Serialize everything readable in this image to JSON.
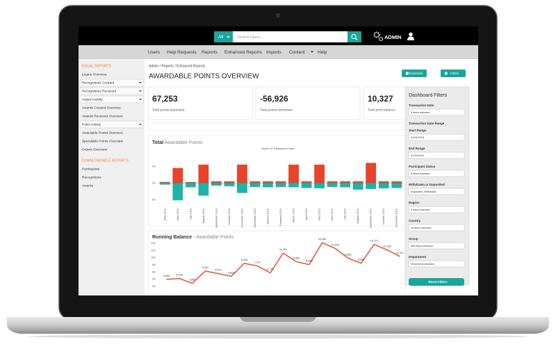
{
  "topbar": {
    "search_scope": "All",
    "search_placeholder": "Search Users...",
    "user": "ADMIN"
  },
  "nav": [
    "Users",
    "Help Requests",
    "Reports",
    "Enhanced Reports",
    "Imports",
    "Content",
    "Help"
  ],
  "sidebar": [
    {
      "heading": "VISUAL REPORTS",
      "items": [
        {
          "label": "Logins Overview"
        },
        {
          "label": "Recognitions Created",
          "dropdown": true
        },
        {
          "label": "Recognitions Received",
          "dropdown": true
        },
        {
          "label": "Award Activity",
          "dropdown": true
        },
        {
          "label": "Awards Created Overview"
        },
        {
          "label": "Awards Received Overview"
        },
        {
          "label": "Point Activity",
          "dropdown": true
        },
        {
          "label": "Awardable Points Overview"
        },
        {
          "label": "Spendable Points Overview"
        },
        {
          "label": "Orders Overview"
        }
      ]
    },
    {
      "heading": "DOWNLOADABLE REPORTS",
      "items": [
        {
          "label": "Participants"
        },
        {
          "label": "Recognitions"
        },
        {
          "label": "Awards"
        }
      ]
    }
  ],
  "breadcrumb": "Admin  /  Reports  /  Enhanced Reports",
  "page_title": "AWARDABLE POINTS OVERVIEW",
  "buttons": [
    "Download",
    "Filters"
  ],
  "kpis": [
    {
      "value": "67,253",
      "label": "Total points deposited"
    },
    {
      "value": "-56,926",
      "label": "Total points withdrawn"
    },
    {
      "value": "10,327",
      "label": "Total point balance"
    }
  ],
  "filters": {
    "title": "Dashboard Filters",
    "fields": [
      {
        "label": "Transaction Date",
        "value": "9 items selected"
      },
      {
        "label": "Transaction Date Range"
      },
      {
        "label": "Start Range",
        "value": "01/15/2018"
      },
      {
        "label": "End Range",
        "value": "01/15/2020"
      },
      {
        "label": "Participant Status",
        "value": "5 items selected"
      },
      {
        "label": "Withdrawn or Deposited",
        "value": "Deposited, Withdrawn"
      },
      {
        "label": "Region",
        "value": "4 items selected"
      },
      {
        "label": "Country",
        "value": "34 items selected"
      },
      {
        "label": "Group",
        "value": "382 items selected"
      },
      {
        "label": "Department",
        "value": "2918 items selected"
      }
    ],
    "reset": "Reset Filters"
  },
  "charts": [
    {
      "type": "bar",
      "title": "Total",
      "subtitle": "Awardable Points",
      "x_label": "Month of Transaction Date",
      "categories": [
        "May 2018",
        "June 2018",
        "July 2018",
        "August 2018",
        "September 2018",
        "October 2018",
        "November 2018",
        "December 2018",
        "January 2019",
        "February 2019",
        "March 2019",
        "April 2019",
        "May 2019",
        "June 2019",
        "July 2019",
        "August 2019",
        "September 2019",
        "October 2019",
        "November 2019"
      ],
      "series": [
        {
          "color": "#e8432b",
          "values": [
            300,
            4500,
            300,
            5500,
            500,
            500,
            5500,
            500,
            500,
            500,
            5500,
            500,
            5500,
            500,
            500,
            500,
            6000,
            500,
            500
          ]
        },
        {
          "color": "#1fb3a8",
          "values": [
            -500,
            -5200,
            -1300,
            -3800,
            -800,
            -1000,
            -3000,
            -1200,
            -1300,
            -1200,
            -1300,
            -1500,
            -1600,
            -1200,
            -1300,
            -2000,
            -1800,
            -1600,
            -1500
          ]
        }
      ],
      "ylim": [
        -8000,
        9000
      ],
      "yticks": [
        {
          "value": 5000,
          "label": "5K"
        },
        {
          "value": 0,
          "label": "0K"
        },
        {
          "value": -5000,
          "label": "-5K"
        }
      ]
    },
    {
      "type": "line",
      "title": "Running Balance",
      "subtitle": "- Awardable Points",
      "color": "#e8432b",
      "values": [
        3960,
        4208,
        2860,
        6287,
        5574,
        4824,
        8426,
        7714,
        5778,
        11261,
        8885,
        8089,
        14183,
        12578,
        9856,
        8461,
        13721,
        12155,
        10327
      ],
      "value_labels": [
        "3,960",
        "4,208",
        "2,860",
        "6,287",
        "5,574",
        "4,824",
        "8,426",
        "7,714",
        "5,778",
        "11,261",
        "8,885",
        "8,089",
        "14,183",
        "12,578",
        "9,856",
        "8,461",
        "13,721",
        "12,155",
        "10,327"
      ],
      "ylim": [
        0,
        16000
      ],
      "yticks": [
        {
          "value": 14000,
          "label": "14K"
        },
        {
          "value": 12000,
          "label": "12K"
        },
        {
          "value": 10000,
          "label": "10K"
        },
        {
          "value": 8000,
          "label": "8K"
        },
        {
          "value": 6000,
          "label": "6K"
        },
        {
          "value": 4000,
          "label": "4K"
        },
        {
          "value": 2000,
          "label": "2K"
        }
      ]
    }
  ]
}
